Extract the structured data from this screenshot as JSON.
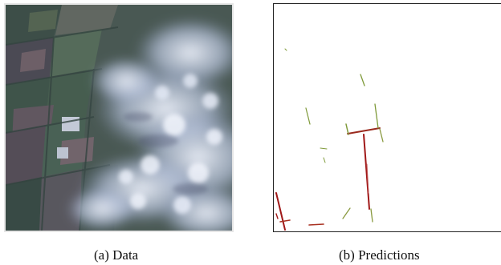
{
  "figures": [
    {
      "caption": "(a)  Data"
    },
    {
      "caption": "(b)  Predictions"
    }
  ],
  "colors": {
    "prediction_dark": "#a01818",
    "prediction_light": "#7f9a3a",
    "field_dark": "#2f4a34",
    "cloud": "#cfd8ea"
  }
}
